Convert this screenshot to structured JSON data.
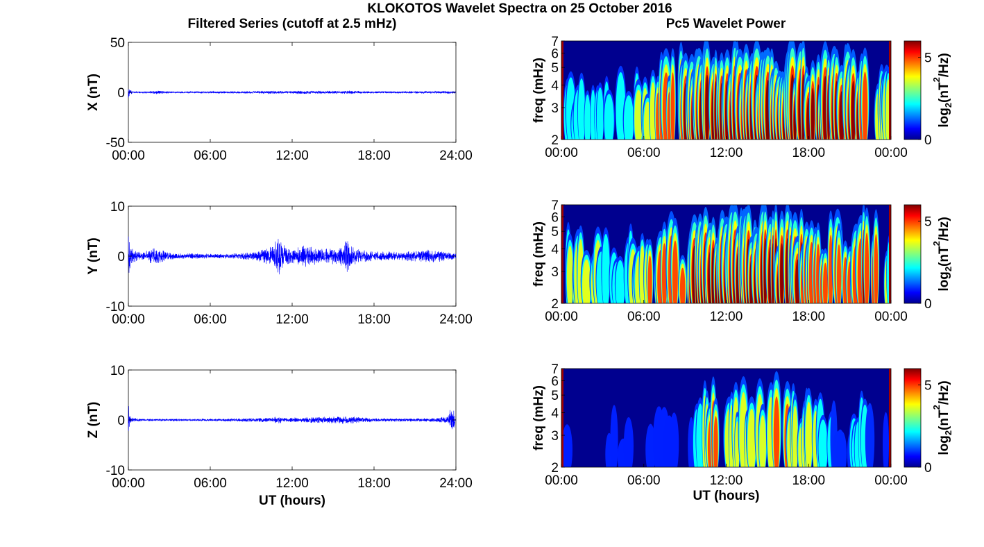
{
  "figure": {
    "title": "KLOKOTOS Wavelet Spectra on 25 October 2016",
    "left_column_title": "Filtered Series (cutoff at 2.5 mHz)",
    "right_column_title": "Pc5 Wavelet Power"
  },
  "chart_data": [
    {
      "type": "line",
      "component": "X",
      "ylabel": "X (nT)",
      "xlabel": "",
      "ylim": [
        -50,
        50
      ],
      "yticks": [
        -50,
        0,
        50
      ],
      "xticks": [
        "00:00",
        "06:00",
        "12:00",
        "18:00",
        "24:00"
      ],
      "xlim_hours": [
        0,
        24
      ],
      "series_color": "#0000ff",
      "envelope": [
        [
          0.0,
          8
        ],
        [
          0.1,
          3
        ],
        [
          0.3,
          0.7
        ],
        [
          1.5,
          0.8
        ],
        [
          2.0,
          1.5
        ],
        [
          3.0,
          0.8
        ],
        [
          5.0,
          0.8
        ],
        [
          8.0,
          0.9
        ],
        [
          10.5,
          1.4
        ],
        [
          11.5,
          1.1
        ],
        [
          12.5,
          1.5
        ],
        [
          14.0,
          1.3
        ],
        [
          16.0,
          1.4
        ],
        [
          18.0,
          0.9
        ],
        [
          20.0,
          0.9
        ],
        [
          22.0,
          1.0
        ],
        [
          23.6,
          1.1
        ],
        [
          24.0,
          0.8
        ]
      ]
    },
    {
      "type": "line",
      "component": "Y",
      "ylabel": "Y (nT)",
      "xlabel": "",
      "ylim": [
        -10,
        10
      ],
      "yticks": [
        -10,
        0,
        10
      ],
      "xticks": [
        "00:00",
        "06:00",
        "12:00",
        "18:00",
        "24:00"
      ],
      "xlim_hours": [
        0,
        24
      ],
      "series_color": "#0000ff",
      "envelope": [
        [
          0.0,
          5
        ],
        [
          0.15,
          1.5
        ],
        [
          1.0,
          0.6
        ],
        [
          2.0,
          1.6
        ],
        [
          3.0,
          0.6
        ],
        [
          6.0,
          0.4
        ],
        [
          8.0,
          0.5
        ],
        [
          9.5,
          0.9
        ],
        [
          10.5,
          1.8
        ],
        [
          11.0,
          3.8
        ],
        [
          11.5,
          1.6
        ],
        [
          12.0,
          1.2
        ],
        [
          13.0,
          2.0
        ],
        [
          14.0,
          1.3
        ],
        [
          15.5,
          1.5
        ],
        [
          16.0,
          3.0
        ],
        [
          16.5,
          1.5
        ],
        [
          18.0,
          0.8
        ],
        [
          20.0,
          0.8
        ],
        [
          22.0,
          1.2
        ],
        [
          23.0,
          1.0
        ],
        [
          24.0,
          0.5
        ]
      ]
    },
    {
      "type": "line",
      "component": "Z",
      "ylabel": "Z (nT)",
      "xlabel": "UT (hours)",
      "ylim": [
        -10,
        10
      ],
      "yticks": [
        -10,
        0,
        10
      ],
      "xticks": [
        "00:00",
        "06:00",
        "12:00",
        "18:00",
        "24:00"
      ],
      "xlim_hours": [
        0,
        24
      ],
      "series_color": "#0000ff",
      "envelope": [
        [
          0.0,
          3
        ],
        [
          0.15,
          0.5
        ],
        [
          1.0,
          0.2
        ],
        [
          6.0,
          0.2
        ],
        [
          10.5,
          0.4
        ],
        [
          11.0,
          0.7
        ],
        [
          11.5,
          0.4
        ],
        [
          13.0,
          0.5
        ],
        [
          16.0,
          0.7
        ],
        [
          18.0,
          0.3
        ],
        [
          22.0,
          0.3
        ],
        [
          23.4,
          0.6
        ],
        [
          23.7,
          2.8
        ],
        [
          24.0,
          0.3
        ]
      ]
    },
    {
      "type": "heatmap",
      "component": "X",
      "ylabel": "freq (mHz)",
      "xlabel": "",
      "ylim_mhz": [
        2,
        7
      ],
      "y_scale": "log",
      "yticks": [
        "2",
        "3",
        "4",
        "5",
        "6",
        "7"
      ],
      "xticks": [
        "00:00",
        "06:00",
        "12:00",
        "18:00",
        "00:00"
      ],
      "colorbar_label_base": "log",
      "colorbar_label_sub": "2",
      "colorbar_label_mid": "(nT",
      "colorbar_label_sup": "2",
      "colorbar_label_end": "/Hz)",
      "colorbar_ticks": [
        "0",
        "5"
      ],
      "colorbar_range": [
        0,
        6
      ],
      "activity_profile": [
        [
          0.0,
          0.35
        ],
        [
          1.0,
          0.3
        ],
        [
          2.0,
          0.4
        ],
        [
          3.0,
          0.2
        ],
        [
          4.5,
          0.35
        ],
        [
          6.0,
          0.45
        ],
        [
          7.0,
          0.6
        ],
        [
          8.0,
          0.7
        ],
        [
          9.0,
          0.75
        ],
        [
          10.0,
          0.95
        ],
        [
          11.0,
          0.9
        ],
        [
          12.0,
          0.8
        ],
        [
          13.0,
          0.85
        ],
        [
          14.0,
          0.95
        ],
        [
          15.0,
          1.0
        ],
        [
          16.0,
          0.95
        ],
        [
          17.0,
          0.95
        ],
        [
          18.0,
          0.85
        ],
        [
          19.0,
          0.75
        ],
        [
          20.0,
          0.8
        ],
        [
          21.0,
          0.85
        ],
        [
          22.0,
          0.7
        ],
        [
          23.0,
          0.6
        ],
        [
          24.0,
          0.4
        ]
      ]
    },
    {
      "type": "heatmap",
      "component": "Y",
      "ylabel": "freq (mHz)",
      "xlabel": "",
      "ylim_mhz": [
        2,
        7
      ],
      "y_scale": "log",
      "yticks": [
        "2",
        "3",
        "4",
        "5",
        "6",
        "7"
      ],
      "xticks": [
        "00:00",
        "06:00",
        "12:00",
        "18:00",
        "00:00"
      ],
      "colorbar_label_base": "log",
      "colorbar_label_sub": "2",
      "colorbar_label_mid": "(nT",
      "colorbar_label_sup": "2",
      "colorbar_label_end": "/Hz)",
      "colorbar_ticks": [
        "0",
        "5"
      ],
      "colorbar_range": [
        0,
        6
      ],
      "activity_profile": [
        [
          0.0,
          0.3
        ],
        [
          1.0,
          0.5
        ],
        [
          2.0,
          0.6
        ],
        [
          3.0,
          0.35
        ],
        [
          4.5,
          0.3
        ],
        [
          6.0,
          0.55
        ],
        [
          7.0,
          0.7
        ],
        [
          8.0,
          0.65
        ],
        [
          9.0,
          0.7
        ],
        [
          10.0,
          1.0
        ],
        [
          11.0,
          1.0
        ],
        [
          12.0,
          0.85
        ],
        [
          13.0,
          0.9
        ],
        [
          14.0,
          0.95
        ],
        [
          15.0,
          0.9
        ],
        [
          16.0,
          0.85
        ],
        [
          17.0,
          0.8
        ],
        [
          18.0,
          0.7
        ],
        [
          19.0,
          0.7
        ],
        [
          20.0,
          0.6
        ],
        [
          21.0,
          0.7
        ],
        [
          22.0,
          0.75
        ],
        [
          23.0,
          0.7
        ],
        [
          24.0,
          0.3
        ]
      ]
    },
    {
      "type": "heatmap",
      "component": "Z",
      "ylabel": "freq (mHz)",
      "xlabel": "UT (hours)",
      "ylim_mhz": [
        2,
        7
      ],
      "y_scale": "log",
      "yticks": [
        "2",
        "3",
        "4",
        "5",
        "6",
        "7"
      ],
      "xticks": [
        "00:00",
        "06:00",
        "12:00",
        "18:00",
        "00:00"
      ],
      "colorbar_label_base": "log",
      "colorbar_label_sub": "2",
      "colorbar_label_mid": "(nT",
      "colorbar_label_sup": "2",
      "colorbar_label_end": "/Hz)",
      "colorbar_ticks": [
        "0",
        "5"
      ],
      "colorbar_range": [
        0,
        6
      ],
      "activity_profile": [
        [
          0.0,
          0.05
        ],
        [
          2.0,
          0.05
        ],
        [
          3.0,
          0.1
        ],
        [
          5.0,
          0.05
        ],
        [
          6.0,
          0.1
        ],
        [
          8.0,
          0.05
        ],
        [
          9.5,
          0.1
        ],
        [
          10.5,
          0.55
        ],
        [
          11.0,
          0.7
        ],
        [
          12.0,
          0.45
        ],
        [
          13.0,
          0.55
        ],
        [
          14.0,
          0.5
        ],
        [
          15.0,
          0.45
        ],
        [
          15.5,
          0.65
        ],
        [
          16.0,
          0.7
        ],
        [
          17.0,
          0.5
        ],
        [
          18.0,
          0.55
        ],
        [
          19.0,
          0.35
        ],
        [
          20.0,
          0.2
        ],
        [
          21.0,
          0.15
        ],
        [
          22.0,
          0.45
        ],
        [
          22.5,
          0.2
        ],
        [
          23.0,
          0.05
        ],
        [
          24.0,
          0.05
        ]
      ]
    }
  ]
}
